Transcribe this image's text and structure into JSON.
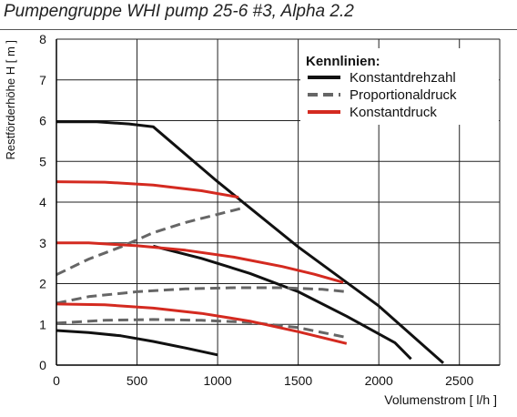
{
  "chart_data": {
    "type": "line",
    "title": "Pumpengruppe WHI pump 25-6 #3, Alpha 2.2",
    "xlabel": "Volumenstrom [ l/h ]",
    "ylabel": "Restförderhöhe H [ m ]",
    "xlim": [
      0,
      2750
    ],
    "ylim": [
      0,
      8
    ],
    "xticks": [
      "0",
      "500",
      "1000",
      "1500",
      "2000",
      "2500"
    ],
    "yticks": [
      "0",
      "1",
      "2",
      "3",
      "4",
      "5",
      "6",
      "7",
      "8"
    ],
    "grid": true,
    "legend": {
      "title": "Kennlinien:",
      "position": "top-right",
      "entries": [
        {
          "label": "Konstantdrehzahl",
          "color": "#111111",
          "style": "solid"
        },
        {
          "label": "Proportionaldruck",
          "color": "#666666",
          "style": "dashed"
        },
        {
          "label": "Konstantdruck",
          "color": "#d42a20",
          "style": "solid"
        }
      ]
    },
    "series": [
      {
        "group": "Konstantdrehzahl",
        "points": [
          [
            0,
            5.97
          ],
          [
            250,
            5.97
          ],
          [
            450,
            5.92
          ],
          [
            600,
            5.85
          ],
          [
            1000,
            4.5
          ],
          [
            1500,
            2.9
          ],
          [
            2000,
            1.45
          ],
          [
            2400,
            0.05
          ]
        ]
      },
      {
        "group": "Konstantdrehzahl",
        "points": [
          [
            600,
            2.92
          ],
          [
            900,
            2.62
          ],
          [
            1200,
            2.25
          ],
          [
            1500,
            1.8
          ],
          [
            1800,
            1.2
          ],
          [
            2100,
            0.55
          ],
          [
            2200,
            0.15
          ]
        ]
      },
      {
        "group": "Konstantdrehzahl",
        "points": [
          [
            0,
            0.85
          ],
          [
            200,
            0.8
          ],
          [
            400,
            0.72
          ],
          [
            600,
            0.58
          ],
          [
            800,
            0.42
          ],
          [
            1000,
            0.25
          ]
        ]
      },
      {
        "group": "Proportionaldruck",
        "points": [
          [
            0,
            2.22
          ],
          [
            200,
            2.6
          ],
          [
            400,
            2.9
          ],
          [
            600,
            3.25
          ],
          [
            800,
            3.5
          ],
          [
            1000,
            3.7
          ],
          [
            1150,
            3.85
          ]
        ]
      },
      {
        "group": "Proportionaldruck",
        "points": [
          [
            0,
            1.52
          ],
          [
            200,
            1.68
          ],
          [
            500,
            1.8
          ],
          [
            800,
            1.87
          ],
          [
            1100,
            1.9
          ],
          [
            1400,
            1.9
          ],
          [
            1650,
            1.86
          ],
          [
            1800,
            1.8
          ]
        ]
      },
      {
        "group": "Proportionaldruck",
        "points": [
          [
            0,
            1.03
          ],
          [
            300,
            1.1
          ],
          [
            600,
            1.12
          ],
          [
            900,
            1.1
          ],
          [
            1200,
            1.05
          ],
          [
            1500,
            0.92
          ],
          [
            1800,
            0.68
          ]
        ]
      },
      {
        "group": "Konstantdruck",
        "points": [
          [
            0,
            4.5
          ],
          [
            300,
            4.49
          ],
          [
            600,
            4.42
          ],
          [
            900,
            4.28
          ],
          [
            1130,
            4.12
          ]
        ]
      },
      {
        "group": "Konstantdruck",
        "points": [
          [
            0,
            3.0
          ],
          [
            200,
            3.0
          ],
          [
            500,
            2.93
          ],
          [
            800,
            2.82
          ],
          [
            1100,
            2.65
          ],
          [
            1400,
            2.42
          ],
          [
            1600,
            2.23
          ],
          [
            1780,
            2.03
          ]
        ]
      },
      {
        "group": "Konstantdruck",
        "points": [
          [
            0,
            1.5
          ],
          [
            300,
            1.48
          ],
          [
            600,
            1.4
          ],
          [
            900,
            1.27
          ],
          [
            1200,
            1.08
          ],
          [
            1500,
            0.82
          ],
          [
            1800,
            0.53
          ]
        ]
      }
    ]
  }
}
